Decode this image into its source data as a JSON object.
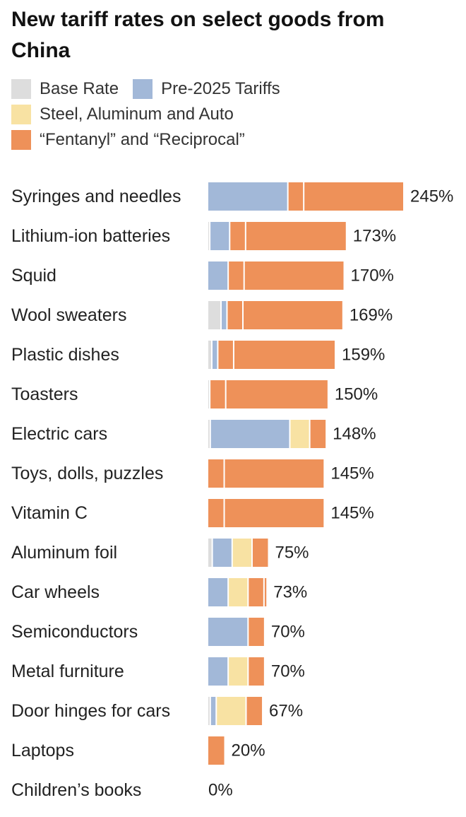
{
  "chart_data": {
    "type": "bar",
    "orientation": "horizontal",
    "stacked": true,
    "title": "New tariff rates on select goods from China",
    "categories": [
      "Syringes and needles",
      "Lithium-ion batteries",
      "Squid",
      "Wool sweaters",
      "Plastic dishes",
      "Toasters",
      "Electric cars",
      "Toys, dolls, puzzles",
      "Vitamin C",
      "Aluminum foil",
      "Car wheels",
      "Semiconductors",
      "Metal furniture",
      "Door hinges for cars",
      "Laptops",
      "Children’s books"
    ],
    "totals_labels": [
      "245%",
      "173%",
      "170%",
      "169%",
      "159%",
      "150%",
      "148%",
      "145%",
      "145%",
      "75%",
      "73%",
      "70%",
      "70%",
      "67%",
      "20%",
      "0%"
    ],
    "totals": [
      245,
      173,
      170,
      169,
      159,
      150,
      148,
      145,
      145,
      75,
      73,
      70,
      70,
      67,
      20,
      0
    ],
    "series": [
      {
        "name": "Base Rate",
        "color": "#dddddd",
        "values": [
          0,
          1.9,
          0,
          16,
          4.4,
          1.9,
          2.5,
          0,
          0,
          5,
          0,
          0,
          0,
          2.5,
          0,
          0
        ]
      },
      {
        "name": "Pre-2025 Tariffs",
        "color": "#a2b8d8",
        "values": [
          100,
          25,
          25,
          7.5,
          7.5,
          0,
          100,
          0,
          0,
          25,
          25,
          50,
          25,
          7.5,
          0,
          0
        ]
      },
      {
        "name": "Steel, Aluminum and Auto",
        "color": "#f8e2a3",
        "values": [
          0,
          0,
          0,
          0,
          0,
          0,
          25,
          0,
          0,
          25,
          25,
          0,
          25,
          37.5,
          0,
          0
        ]
      },
      {
        "name": "“Fentanyl” and “Reciprocal”",
        "color": "#ee9159",
        "values": [
          145,
          146,
          145,
          145,
          147,
          148,
          20,
          145,
          145,
          20,
          23,
          20,
          20,
          20,
          20,
          0
        ]
      }
    ],
    "segment_breaks": [
      [
        100,
        0,
        20
      ],
      [
        0,
        1.9,
        0,
        20
      ],
      [
        0,
        0,
        20
      ],
      [
        0,
        0,
        20
      ],
      [
        0,
        0,
        20
      ],
      [
        0,
        20
      ],
      [
        0,
        0,
        0,
        20
      ],
      [
        20
      ],
      [
        20
      ],
      [
        0,
        0,
        0,
        20
      ],
      [
        0,
        0,
        0
      ],
      [
        0,
        0
      ],
      [
        0,
        0,
        0
      ],
      [
        0,
        0,
        0
      ],
      [],
      []
    ],
    "xlim": [
      0,
      245
    ],
    "grid": false,
    "legend_position": "top"
  }
}
